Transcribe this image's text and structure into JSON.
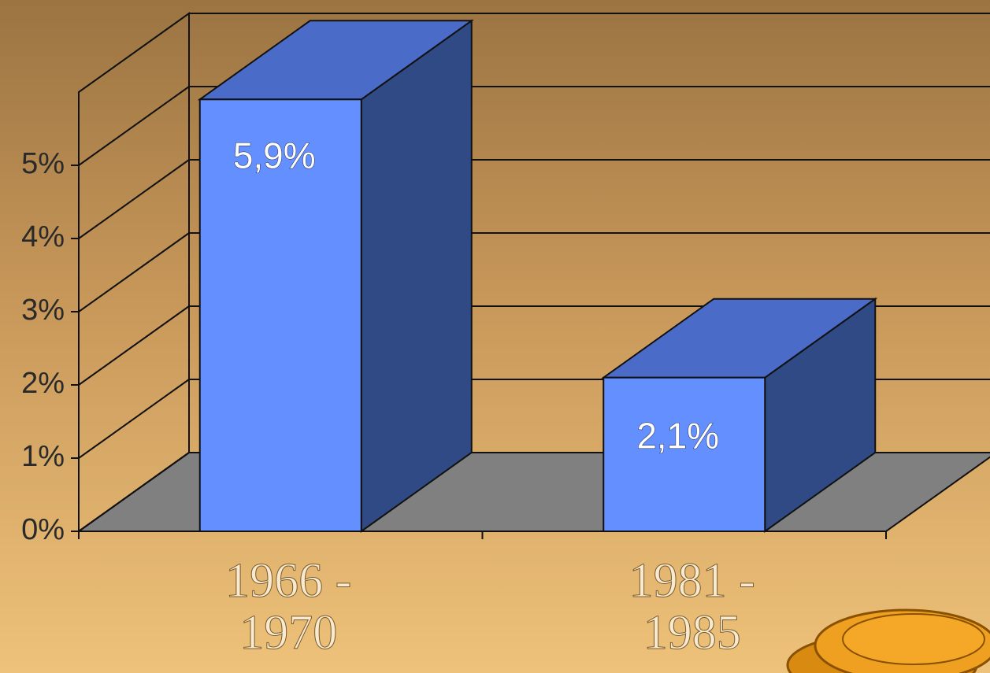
{
  "chart_data": {
    "type": "bar3d",
    "categories": [
      "1966 - 1970",
      "1981 - 1985"
    ],
    "values": [
      5.9,
      2.1
    ],
    "value_labels": [
      "5,9%",
      "2,1%"
    ],
    "color": "#6490ff",
    "ylim": [
      0,
      6
    ],
    "yticks": [
      {
        "value": 0,
        "label": "0%"
      },
      {
        "value": 1,
        "label": "1%"
      },
      {
        "value": 2,
        "label": "2%"
      },
      {
        "value": 3,
        "label": "3%"
      },
      {
        "value": 4,
        "label": "4%"
      },
      {
        "value": 5,
        "label": "5%"
      }
    ],
    "grid": true
  }
}
